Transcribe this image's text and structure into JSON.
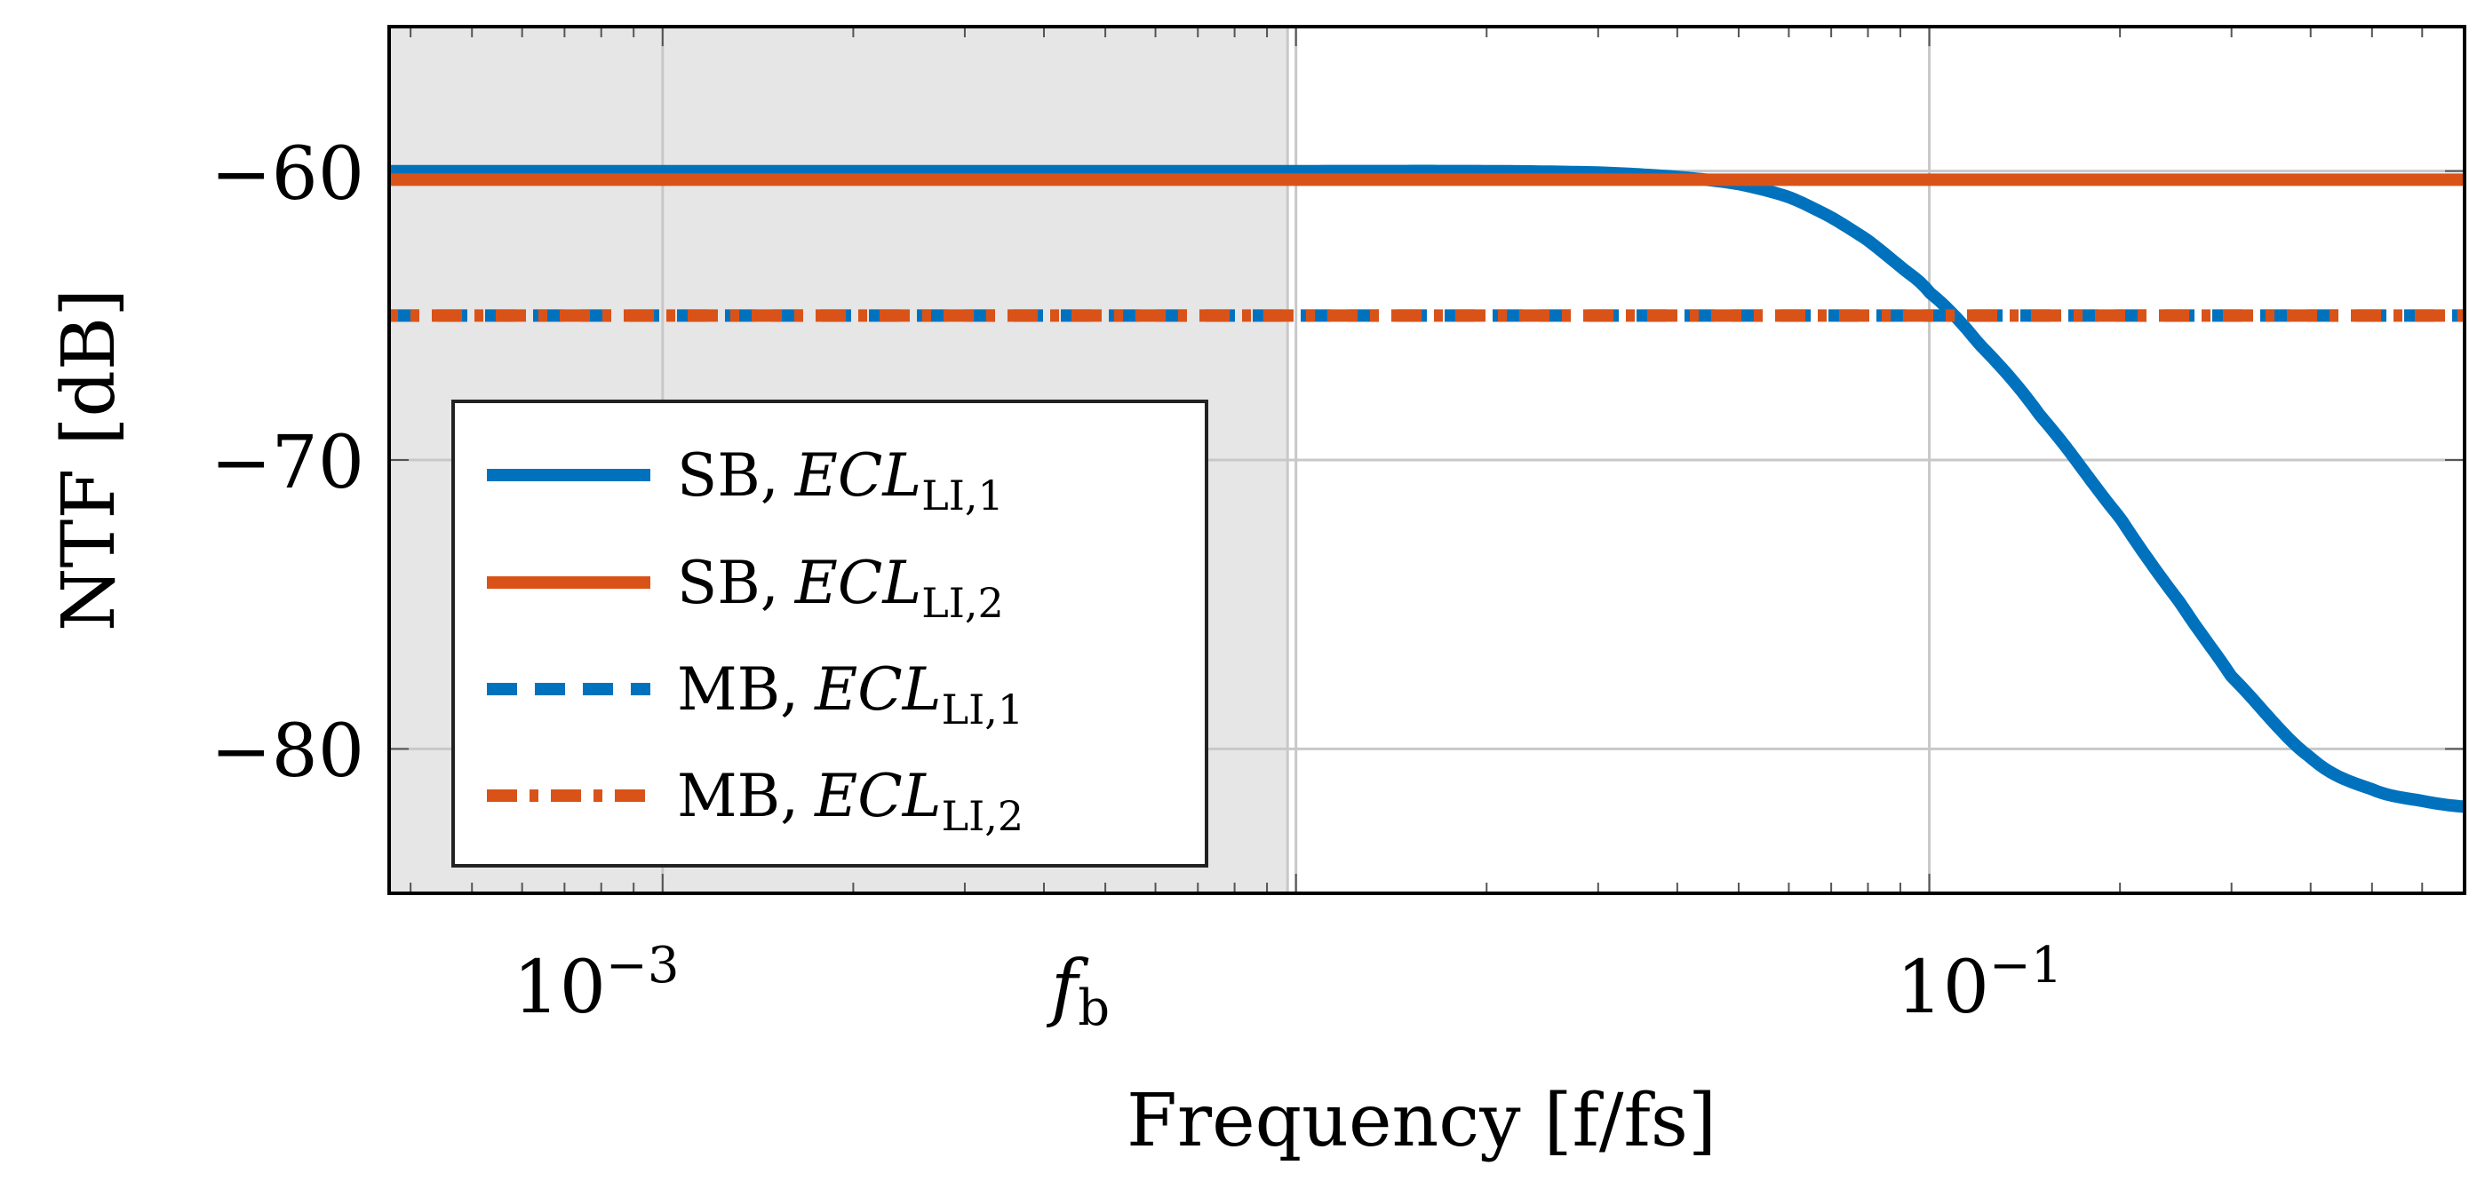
{
  "chart_data": {
    "type": "line",
    "xscale": "log",
    "xlabel": "Frequency [f/fs]",
    "ylabel": "NTF [dB]",
    "xlim": [
      0.00037,
      0.7
    ],
    "ylim": [
      -85,
      -55
    ],
    "grid": true,
    "xticks": [
      {
        "value": 0.001,
        "base": "10",
        "exp": "−3"
      },
      {
        "value": 0.0097,
        "main": "f",
        "sub": "b"
      },
      {
        "value": 0.1,
        "base": "10",
        "exp": "−1"
      }
    ],
    "yticks": [
      {
        "value": -60,
        "label": "−60"
      },
      {
        "value": -70,
        "label": "−70"
      },
      {
        "value": -80,
        "label": "−80"
      }
    ],
    "shaded_band": {
      "from": 0.00037,
      "to": 0.0097,
      "color": "#e6e6e6"
    },
    "colors": {
      "blue": "#0072BD",
      "orange": "#D95319",
      "grid": "#c8c8c8",
      "shade": "#e6e6e6"
    },
    "series": [
      {
        "name": "SB, ECL_LI,1",
        "prefix": "SB,",
        "main": "ECL",
        "sub": "LI,1",
        "color": "#0072BD",
        "style": "solid",
        "x": [
          0.00037,
          0.001,
          0.005,
          0.0097,
          0.02,
          0.03,
          0.04,
          0.05,
          0.06,
          0.07,
          0.08,
          0.09,
          0.1,
          0.12,
          0.15,
          0.2,
          0.25,
          0.3,
          0.4,
          0.5,
          0.6,
          0.7
        ],
        "y": [
          -60.0,
          -60.0,
          -60.0,
          -60.0,
          -60.0,
          -60.05,
          -60.2,
          -60.45,
          -60.9,
          -61.6,
          -62.4,
          -63.3,
          -64.2,
          -66.0,
          -68.5,
          -72.0,
          -75.0,
          -77.5,
          -80.3,
          -81.4,
          -81.8,
          -82.0
        ]
      },
      {
        "name": "SB, ECL_LI,2",
        "prefix": "SB,",
        "main": "ECL",
        "sub": "LI,2",
        "color": "#D95319",
        "style": "solid",
        "x": [
          0.00037,
          0.7
        ],
        "y": [
          -60.3,
          -60.3
        ]
      },
      {
        "name": "MB, ECL_LI,1",
        "prefix": "MB,",
        "main": "ECL",
        "sub": "LI,1",
        "color": "#0072BD",
        "style": "dashed",
        "x": [
          0.00037,
          0.7
        ],
        "y": [
          -65,
          -65
        ]
      },
      {
        "name": "MB, ECL_LI,2",
        "prefix": "MB,",
        "main": "ECL",
        "sub": "LI,2",
        "color": "#D95319",
        "style": "dashdot",
        "x": [
          0.00037,
          0.7
        ],
        "y": [
          -65,
          -65
        ]
      }
    ],
    "legend_position": "bottom-left"
  }
}
